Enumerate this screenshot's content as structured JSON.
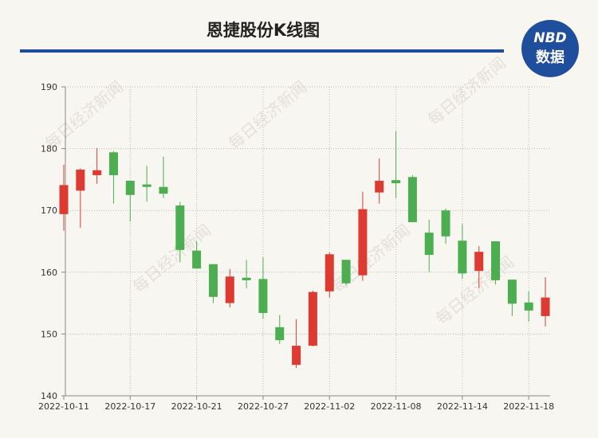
{
  "header": {
    "title": "恩捷股份K线图",
    "logo": {
      "top": "NBD",
      "bottom": "数据"
    }
  },
  "watermark": "每日经济新闻",
  "chart_data": {
    "type": "candlestick",
    "categories": [
      "2022-10-11",
      null,
      null,
      null,
      "2022-10-17",
      null,
      null,
      null,
      "2022-10-21",
      null,
      null,
      null,
      "2022-10-27",
      null,
      null,
      null,
      "2022-11-02",
      null,
      null,
      null,
      "2022-11-08",
      null,
      null,
      null,
      "2022-11-14",
      null,
      null,
      null,
      "2022-11-18",
      null
    ],
    "open": [
      169.4,
      173.2,
      175.7,
      179.4,
      174.8,
      174.2,
      173.8,
      170.8,
      163.5,
      161.3,
      155.0,
      159.1,
      158.9,
      151.1,
      145.0,
      148.1,
      156.9,
      162.0,
      159.5,
      172.9,
      174.9,
      175.4,
      166.4,
      170.0,
      165.1,
      160.2,
      165.0,
      158.8,
      155.1,
      152.9
    ],
    "high": [
      177.4,
      176.8,
      180.1,
      179.6,
      174.8,
      177.2,
      178.7,
      171.4,
      165.0,
      161.3,
      160.5,
      162.0,
      162.4,
      153.1,
      152.4,
      157.0,
      163.2,
      162.0,
      173.0,
      178.4,
      182.8,
      175.7,
      168.5,
      170.3,
      167.8,
      164.2,
      165.0,
      158.8,
      156.9,
      159.2
    ],
    "low": [
      166.7,
      167.2,
      174.3,
      171.1,
      168.2,
      171.4,
      172.0,
      161.6,
      160.6,
      155.0,
      154.3,
      157.4,
      152.5,
      148.4,
      144.5,
      148.0,
      155.9,
      157.9,
      158.6,
      171.1,
      172.0,
      168.1,
      160.0,
      164.6,
      158.9,
      157.4,
      158.0,
      152.9,
      152.0,
      151.2
    ],
    "close": [
      174.1,
      176.6,
      176.5,
      175.7,
      172.5,
      173.8,
      172.7,
      163.6,
      160.6,
      156.0,
      159.3,
      158.7,
      153.4,
      149.0,
      148.1,
      156.8,
      162.9,
      158.2,
      170.2,
      174.8,
      174.4,
      168.1,
      162.8,
      165.8,
      159.8,
      163.3,
      158.7,
      154.9,
      153.8,
      155.9
    ],
    "ylim": [
      140,
      190
    ],
    "yticks": [
      140,
      150,
      160,
      170,
      180,
      190
    ],
    "up_color": "#dd3b32",
    "down_color": "#4cae50",
    "grid": true
  }
}
